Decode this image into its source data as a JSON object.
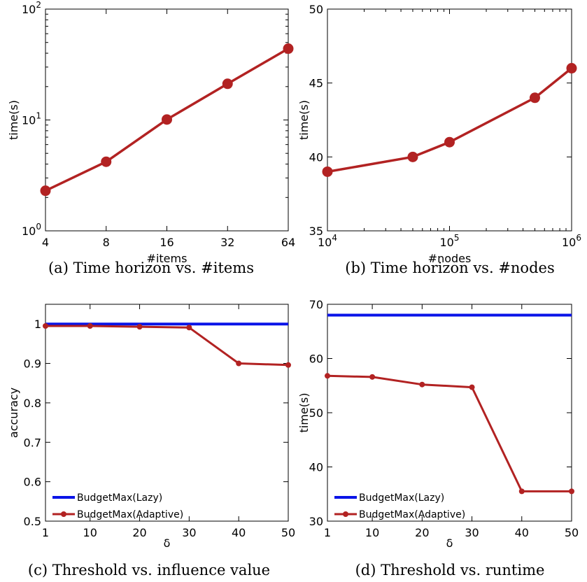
{
  "chart_data": [
    {
      "id": "a",
      "type": "line",
      "caption": "(a) Time horizon vs. #items",
      "xlabel": "#items",
      "ylabel": "time(s)",
      "xscale": "log2",
      "yscale": "log",
      "xlim": [
        4,
        64
      ],
      "ylim": [
        1,
        100
      ],
      "xticks": [
        4,
        8,
        16,
        32,
        64
      ],
      "xtick_labels": [
        "4",
        "8",
        "16",
        "32",
        "64"
      ],
      "yticks": [
        1,
        10,
        100
      ],
      "ytick_labels": [
        {
          "base": "10",
          "exp": "0"
        },
        {
          "base": "10",
          "exp": "1"
        },
        {
          "base": "10",
          "exp": "2"
        }
      ],
      "series": [
        {
          "color": "#b22222",
          "marker": "large",
          "x": [
            4,
            8,
            16,
            32,
            64
          ],
          "y": [
            2.3,
            4.2,
            10.1,
            21.2,
            44.0
          ]
        }
      ]
    },
    {
      "id": "b",
      "type": "line",
      "caption": "(b) Time horizon vs. #nodes",
      "xlabel": "#nodes",
      "ylabel": "time(s)",
      "xscale": "log",
      "yscale": "linear",
      "xlim": [
        10000,
        1000000
      ],
      "ylim": [
        35,
        50
      ],
      "xticks": [
        10000,
        100000,
        1000000
      ],
      "xtick_labels": [
        {
          "base": "10",
          "exp": "4"
        },
        {
          "base": "10",
          "exp": "5"
        },
        {
          "base": "10",
          "exp": "6"
        }
      ],
      "yticks": [
        35,
        40,
        45,
        50
      ],
      "ytick_labels": [
        "35",
        "40",
        "45",
        "50"
      ],
      "series": [
        {
          "color": "#b22222",
          "marker": "large",
          "x": [
            10000,
            50000,
            100000,
            500000,
            1000000
          ],
          "y": [
            39,
            40,
            41,
            44,
            46
          ]
        }
      ]
    },
    {
      "id": "c",
      "type": "line",
      "caption": "(c) Threshold vs. influence value",
      "xlabel": "δ",
      "ylabel": "accuracy",
      "xscale": "linear",
      "yscale": "linear",
      "xlim": [
        1,
        50
      ],
      "ylim": [
        0.5,
        1.05
      ],
      "xticks": [
        1,
        10,
        20,
        30,
        40,
        50
      ],
      "xtick_labels": [
        "1",
        "10",
        "20",
        "30",
        "40",
        "50"
      ],
      "yticks": [
        0.5,
        0.6,
        0.7,
        0.8,
        0.9,
        1.0
      ],
      "ytick_labels": [
        "0.5",
        "0.6",
        "0.7",
        "0.8",
        "0.9",
        "1"
      ],
      "legend": "lower-left",
      "series": [
        {
          "name": "BudgetMax(Lazy)",
          "color": "#0a14e8",
          "marker": "none",
          "x": [
            1,
            50
          ],
          "y": [
            1.0,
            1.0
          ]
        },
        {
          "name": "BudgetMax(Adaptive)",
          "color": "#b22222",
          "marker": "small",
          "x": [
            1,
            10,
            20,
            30,
            40,
            50
          ],
          "y": [
            0.995,
            0.995,
            0.993,
            0.991,
            0.9,
            0.896
          ]
        }
      ]
    },
    {
      "id": "d",
      "type": "line",
      "caption": "(d) Threshold vs. runtime",
      "xlabel": "δ",
      "ylabel": "time(s)",
      "xscale": "linear",
      "yscale": "linear",
      "xlim": [
        1,
        50
      ],
      "ylim": [
        30,
        70
      ],
      "xticks": [
        1,
        10,
        20,
        30,
        40,
        50
      ],
      "xtick_labels": [
        "1",
        "10",
        "20",
        "30",
        "40",
        "50"
      ],
      "yticks": [
        30,
        40,
        50,
        60,
        70
      ],
      "ytick_labels": [
        "30",
        "40",
        "50",
        "60",
        "70"
      ],
      "legend": "lower-left",
      "series": [
        {
          "name": "BudgetMax(Lazy)",
          "color": "#0a14e8",
          "marker": "none",
          "x": [
            1,
            50
          ],
          "y": [
            68,
            68
          ]
        },
        {
          "name": "BudgetMax(Adaptive)",
          "color": "#b22222",
          "marker": "small",
          "x": [
            1,
            10,
            20,
            30,
            40,
            50
          ],
          "y": [
            56.8,
            56.6,
            55.2,
            54.7,
            35.5,
            35.5
          ]
        }
      ]
    }
  ]
}
